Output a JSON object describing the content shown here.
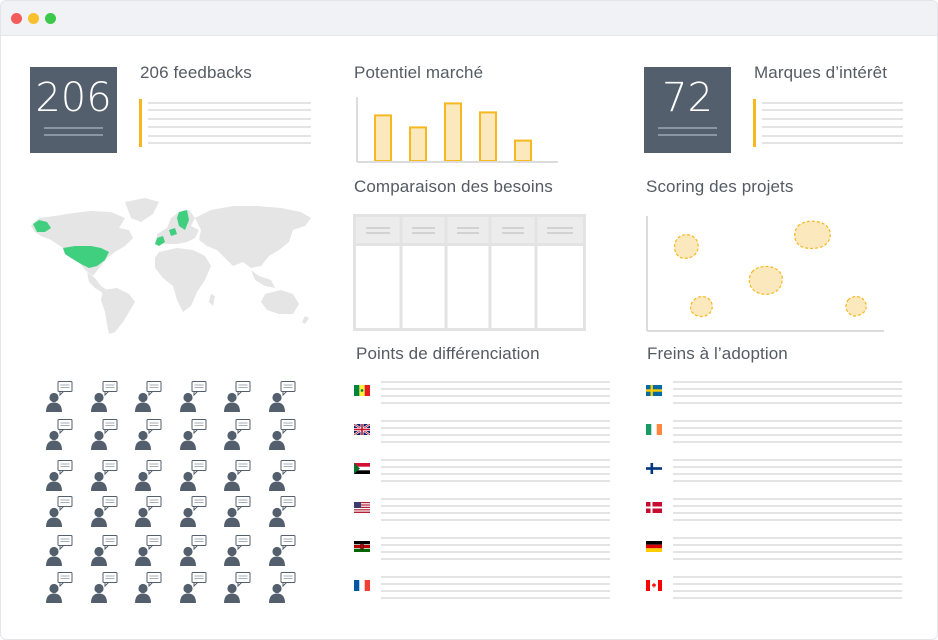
{
  "stats": {
    "feedbacks": {
      "number": "206",
      "label": "206 feedbacks"
    },
    "brands": {
      "number": "72",
      "label": "Marques d’intérêt"
    }
  },
  "sections": {
    "market": "Potentiel marché",
    "needs": "Comparaison des besoins",
    "scoring": "Scoring des projets",
    "differentiation": "Points de différenciation",
    "barriers": "Freins à l’adoption"
  },
  "market_levels": [
    0.76,
    0.56,
    0.96,
    0.81,
    0.34
  ],
  "differentiation_flags": [
    "senegal-flag-icon",
    "uk-flag-icon",
    "sudan-flag-icon",
    "usa-flag-icon",
    "kenya-flag-icon",
    "france-flag-icon"
  ],
  "barrier_flags": [
    "sweden-flag-icon",
    "ireland-flag-icon",
    "finland-flag-icon",
    "denmark-flag-icon",
    "germany-flag-icon",
    "canada-flag-icon"
  ],
  "colors": {
    "accent": "#f5b820",
    "accent_fill": "#fbe8bd",
    "highlight_green": "#3fcf7f",
    "slate": "#545f6d",
    "map_gray": "#e5e5e5",
    "line_gray": "#e4e4e4"
  }
}
